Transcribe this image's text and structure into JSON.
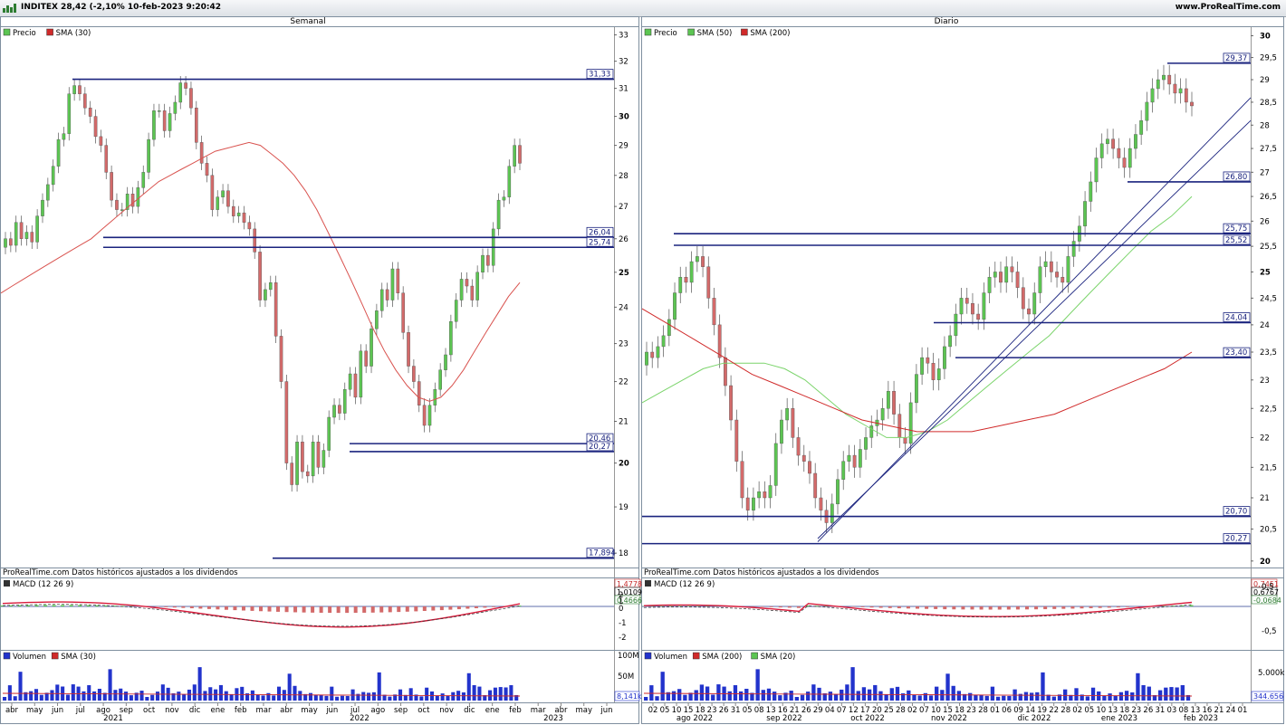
{
  "window": {
    "title": "INDITEX 28,42 (-2,10% 10-feb-2023 9:20:42",
    "site": "www.ProRealTime.com"
  },
  "colors": {
    "frame": "#7f8f9f",
    "level": "#1a237e",
    "up": "#5cc552",
    "down": "#d36a6a",
    "sma": "#d9534f",
    "sma_green": "#7bd46b",
    "sma_red": "#d02a2a",
    "macd": "#d81b3b",
    "volume": "#2233cc"
  },
  "weekly": {
    "panel_title": "Semanal",
    "legend": [
      {
        "label": "Precio",
        "color": "#5cc552"
      },
      {
        "label": "SMA (30)",
        "color": "#d02a2a"
      }
    ],
    "source_note": "ProRealTime.com  Datos históricos ajustados a los dividendos",
    "macd_legend": "MACD (12 26 9)",
    "macd_labels": [
      "1,4778",
      "1,0109",
      "0,4666"
    ],
    "macd_axis": [
      "2",
      "1",
      "0",
      "-1",
      "-2"
    ],
    "volume_legend": [
      {
        "label": "Volumen",
        "color": "#2233cc"
      },
      {
        "label": "SMA (30)",
        "color": "#d02a2a"
      }
    ],
    "volume_axis": [
      "100M",
      "50M"
    ],
    "volume_label": "8,141k",
    "x_labels": [
      "abr",
      "may",
      "jun",
      "jul",
      "ago",
      "sep",
      "oct",
      "nov",
      "dic",
      "ene",
      "feb",
      "mar",
      "abr",
      "may",
      "jun",
      "jul",
      "ago",
      "sep",
      "oct",
      "nov",
      "dic",
      "ene",
      "feb",
      "mar",
      "abr",
      "may",
      "jun"
    ],
    "year_labels": [
      "2021",
      "2022",
      "2023"
    ]
  },
  "daily": {
    "panel_title": "Diario",
    "legend": [
      {
        "label": "Precio",
        "color": "#5cc552"
      },
      {
        "label": "SMA (50)",
        "color": "#5cc552"
      },
      {
        "label": "SMA (200)",
        "color": "#d02a2a"
      }
    ],
    "source_note": "ProRealTime.com  Datos históricos ajustados a los dividendos",
    "macd_legend": "MACD (12 26 9)",
    "macd_labels": [
      "0,7451",
      "0,6767",
      "-0,0684"
    ],
    "macd_axis": [
      "0,5",
      "-0,5"
    ],
    "volume_legend": [
      {
        "label": "Volumen",
        "color": "#2233cc"
      },
      {
        "label": "SMA (200)",
        "color": "#d02a2a"
      },
      {
        "label": "SMA (20)",
        "color": "#5cc552"
      }
    ],
    "volume_axis": [
      "5.000k"
    ],
    "volume_label": "344.656",
    "x_labels": [
      "02",
      "05",
      "10",
      "15",
      "18",
      "23",
      "26",
      "31",
      "05",
      "08",
      "13",
      "16",
      "21",
      "26",
      "29",
      "04",
      "07",
      "12",
      "17",
      "20",
      "25",
      "28",
      "02",
      "07",
      "10",
      "15",
      "18",
      "23",
      "28",
      "01",
      "06",
      "09",
      "14",
      "19",
      "22",
      "28",
      "02",
      "05",
      "10",
      "13",
      "18",
      "23",
      "26",
      "31",
      "03",
      "08",
      "13",
      "16",
      "21",
      "24",
      "01"
    ],
    "month_labels": [
      "ago 2022",
      "sep 2022",
      "oct 2022",
      "nov 2022",
      "dic 2022",
      "ene 2023",
      "feb 2023"
    ]
  },
  "chart_data": [
    {
      "type": "candlestick",
      "panel": "weekly",
      "ylim": [
        17.7,
        33.3
      ],
      "y_scale": "log",
      "y_ticks": [
        33,
        32,
        31,
        30,
        29,
        28,
        27,
        26,
        25,
        24,
        23,
        22,
        21,
        20,
        19,
        18
      ],
      "bold_ticks": [
        30,
        25,
        20
      ],
      "level_lines": [
        {
          "label": "31,33",
          "value": 31.33
        },
        {
          "label": "26,04",
          "value": 26.04
        },
        {
          "label": "25,74",
          "value": 25.74
        },
        {
          "label": "20,46",
          "value": 20.46
        },
        {
          "label": "20,27",
          "value": 20.27
        },
        {
          "label": "17,894",
          "value": 17.894
        }
      ],
      "candles_close": [
        26.0,
        25.8,
        26.5,
        26.0,
        26.2,
        25.9,
        26.7,
        27.2,
        27.7,
        28.3,
        29.2,
        29.4,
        30.8,
        31.1,
        30.8,
        30.3,
        30.0,
        29.3,
        29.0,
        28.1,
        27.2,
        26.9,
        26.9,
        27.4,
        27.0,
        27.6,
        28.1,
        29.2,
        30.2,
        30.2,
        29.5,
        30.1,
        30.5,
        31.2,
        31.0,
        30.3,
        29.1,
        28.4,
        28.0,
        26.9,
        27.3,
        27.5,
        27.0,
        26.7,
        26.8,
        26.5,
        26.3,
        25.6,
        24.2,
        24.5,
        24.7,
        23.2,
        22.0,
        20.0,
        19.5,
        20.5,
        19.8,
        19.7,
        20.5,
        19.9,
        20.3,
        21.1,
        21.4,
        21.2,
        21.8,
        22.2,
        21.6,
        22.8,
        22.4,
        23.4,
        23.9,
        24.5,
        24.2,
        25.1,
        24.4,
        23.3,
        22.4,
        22.0,
        21.4,
        20.9,
        21.4,
        21.8,
        22.3,
        22.7,
        23.6,
        24.2,
        24.8,
        24.6,
        24.2,
        25.0,
        25.5,
        25.2,
        26.3,
        27.2,
        27.3,
        28.3,
        29.0,
        28.4
      ],
      "sma_30": [
        24.4,
        24.6,
        24.8,
        25.0,
        25.2,
        25.4,
        25.6,
        25.8,
        26.0,
        26.3,
        26.6,
        26.9,
        27.2,
        27.5,
        27.8,
        28.0,
        28.2,
        28.4,
        28.6,
        28.8,
        28.9,
        29.0,
        29.1,
        29.0,
        28.7,
        28.4,
        28.0,
        27.5,
        26.9,
        26.2,
        25.5,
        24.8,
        24.1,
        23.4,
        22.8,
        22.3,
        21.9,
        21.6,
        21.5,
        21.6,
        21.9,
        22.3,
        22.8,
        23.3,
        23.8,
        24.3,
        24.7
      ]
    },
    {
      "type": "candlestick",
      "panel": "daily",
      "ylim": [
        19.9,
        30.2
      ],
      "y_scale": "log",
      "y_ticks": [
        30,
        29.5,
        29,
        28.5,
        28,
        27.5,
        27,
        26.5,
        26,
        25.5,
        25,
        24.5,
        24,
        23.5,
        23,
        22.5,
        22,
        21.5,
        21,
        20.5,
        20
      ],
      "y_tick_labels": [
        "30",
        "29,5",
        "29",
        "28,5",
        "28",
        "27,5",
        "27",
        "26,5",
        "26",
        "25,5",
        "25",
        "24,5",
        "24",
        "23,5",
        "23",
        "22,5",
        "22",
        "21,5",
        "21",
        "20,5",
        "20"
      ],
      "bold_ticks": [
        30,
        25,
        20
      ],
      "level_lines": [
        {
          "label": "29,37",
          "value": 29.37
        },
        {
          "label": "26,80",
          "value": 26.8
        },
        {
          "label": "25,75",
          "value": 25.75
        },
        {
          "label": "25,52",
          "value": 25.52
        },
        {
          "label": "24,04",
          "value": 24.04
        },
        {
          "label": "23,40",
          "value": 23.4
        },
        {
          "label": "20,70",
          "value": 20.7
        },
        {
          "label": "20,27",
          "value": 20.27
        }
      ],
      "candles_close": [
        23.5,
        23.4,
        23.6,
        23.8,
        24.1,
        24.6,
        24.9,
        24.8,
        25.2,
        25.3,
        25.1,
        24.5,
        24.0,
        23.4,
        22.9,
        22.3,
        21.6,
        21.0,
        20.8,
        21.0,
        21.1,
        21.0,
        21.2,
        21.9,
        22.3,
        22.5,
        22.0,
        21.7,
        21.6,
        21.4,
        21.0,
        20.8,
        20.6,
        20.9,
        21.3,
        21.6,
        21.7,
        21.5,
        21.8,
        22.0,
        22.2,
        22.3,
        22.5,
        22.8,
        22.4,
        22.0,
        21.9,
        22.6,
        23.1,
        23.4,
        23.3,
        23.0,
        23.2,
        23.6,
        23.8,
        24.2,
        24.5,
        24.4,
        24.2,
        24.1,
        24.6,
        24.9,
        25.0,
        24.8,
        25.1,
        25.0,
        24.7,
        24.3,
        24.2,
        24.6,
        25.1,
        25.2,
        25.0,
        24.9,
        24.8,
        25.3,
        25.6,
        25.9,
        26.4,
        26.8,
        27.3,
        27.6,
        27.7,
        27.5,
        27.3,
        27.1,
        27.5,
        27.8,
        28.1,
        28.5,
        28.8,
        29.0,
        29.1,
        28.9,
        28.7,
        28.8,
        28.5,
        28.42
      ],
      "sma_50": [
        22.6,
        22.8,
        23.0,
        23.2,
        23.3,
        23.3,
        23.3,
        23.2,
        23.0,
        22.7,
        22.4,
        22.2,
        22.0,
        22.0,
        22.1,
        22.3,
        22.6,
        22.9,
        23.2,
        23.5,
        23.8,
        24.2,
        24.6,
        25.0,
        25.4,
        25.8,
        26.1,
        26.5
      ],
      "sma_200": [
        24.3,
        24.0,
        23.7,
        23.4,
        23.1,
        22.9,
        22.7,
        22.5,
        22.3,
        22.2,
        22.1,
        22.1,
        22.1,
        22.2,
        22.3,
        22.4,
        22.6,
        22.8,
        23.0,
        23.2,
        23.5
      ]
    }
  ]
}
